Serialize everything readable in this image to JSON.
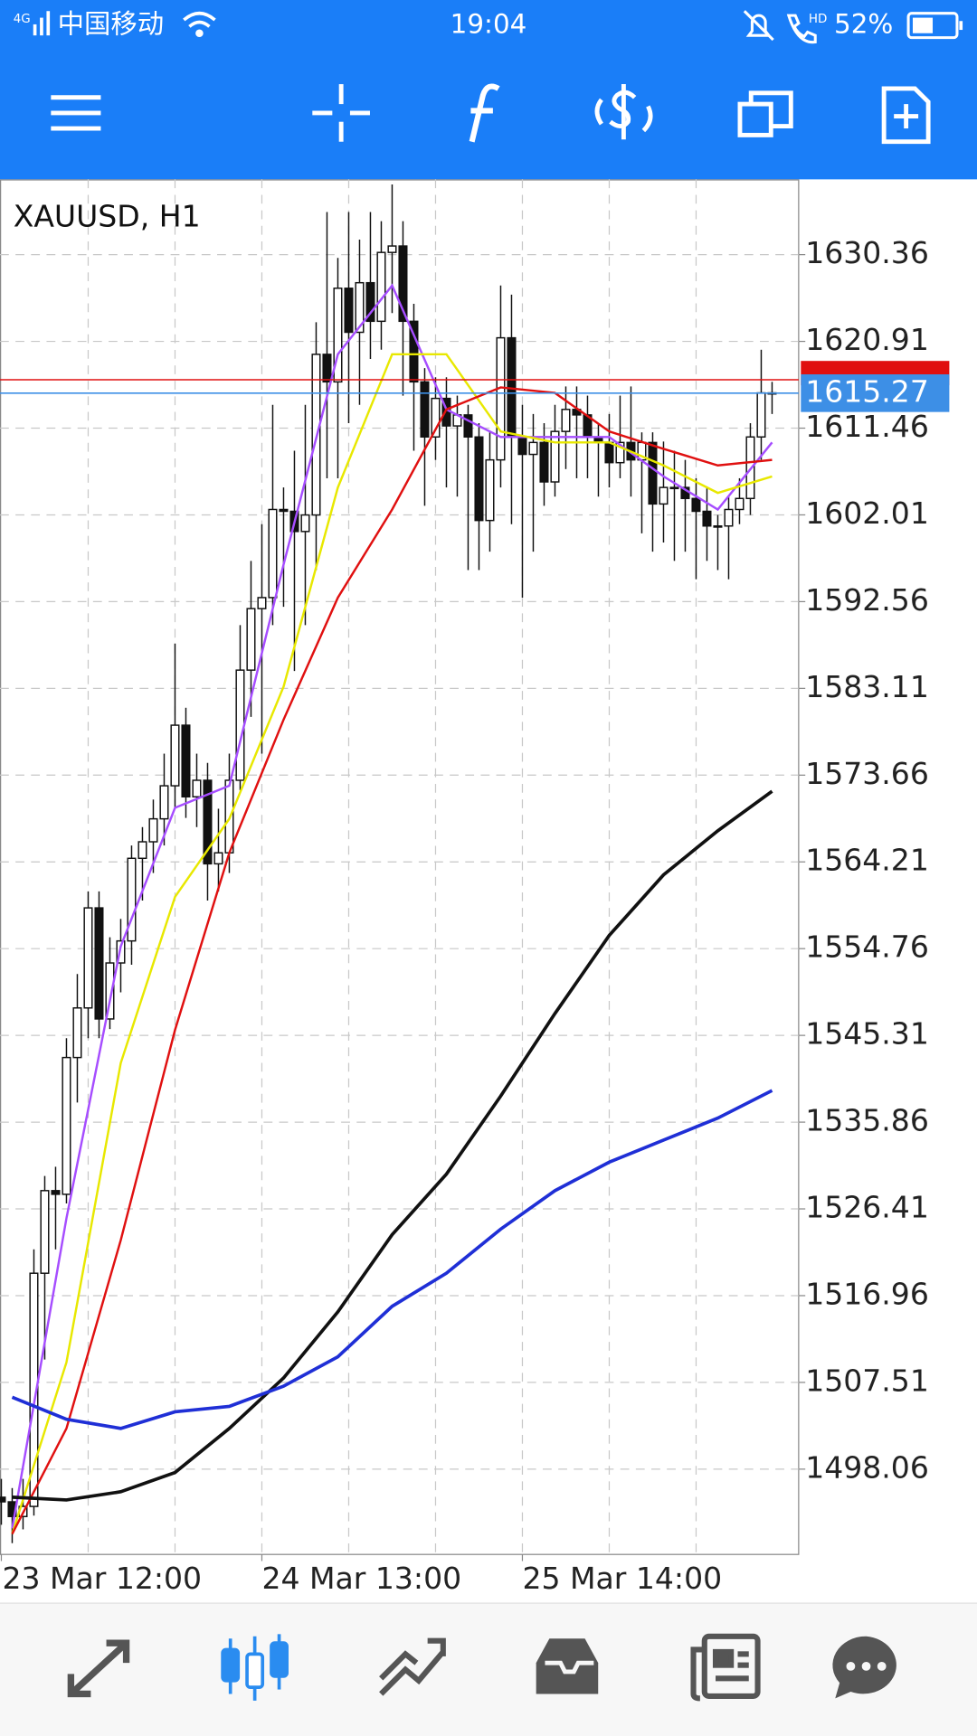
{
  "status_bar": {
    "network": "4G",
    "carrier": "中国移动",
    "time": "19:04",
    "hd": "HD",
    "battery": "52%"
  },
  "chart_data": {
    "type": "candlestick",
    "title": "XAUUSD, H1",
    "categories": [
      "23 Mar 12:00",
      null,
      null,
      null,
      null,
      null,
      null,
      null,
      null,
      null,
      null,
      null,
      null,
      null,
      null,
      null,
      null,
      null,
      null,
      null,
      null,
      null,
      null,
      null,
      "24 Mar 13:00",
      null,
      null,
      null,
      null,
      null,
      null,
      null,
      null,
      null,
      null,
      null,
      null,
      null,
      null,
      null,
      null,
      null,
      null,
      null,
      null,
      null,
      null,
      null,
      "25 Mar 14:00",
      null,
      null,
      null,
      null,
      null,
      null,
      null,
      null,
      null,
      null,
      null,
      null,
      null,
      null,
      null,
      null,
      null,
      null,
      null,
      null,
      null,
      null,
      null
    ],
    "open": [
      1495,
      1494.5,
      1492.9,
      1494,
      1519.4,
      1528.4,
      1528,
      1542.9,
      1548.3,
      1559.2,
      1547.1,
      1553.2,
      1555.6,
      1564.6,
      1566.4,
      1568.9,
      1572.5,
      1579.1,
      1571.3,
      1573.1,
      1564,
      1565.2,
      1573.1,
      1585.1,
      1591.8,
      1593,
      1602.6,
      1602.4,
      1600.2,
      1602,
      1619.5,
      1616.5,
      1626.7,
      1621.9,
      1627.3,
      1623.1,
      1630.6,
      1631.3,
      1623.1,
      1616.5,
      1610.5,
      1614.7,
      1611.7,
      1612.9,
      1610.5,
      1601.4,
      1608,
      1621.3,
      1610.5,
      1608.6,
      1609.9,
      1605.6,
      1611.1,
      1613.5,
      1612.9,
      1610.5,
      1609.9,
      1607.7,
      1609.9,
      1608,
      1609.9,
      1603.2,
      1605,
      1605,
      1603.8,
      1602.4,
      1600.8,
      1600.8,
      1602.6,
      1603.8,
      1610.5,
      1615.3
    ],
    "high": [
      1497,
      1496,
      1497,
      1522,
      1530,
      1531,
      1545,
      1552,
      1561,
      1561,
      1556,
      1558,
      1566,
      1568,
      1571,
      1576,
      1588,
      1581,
      1576,
      1575,
      1570,
      1576,
      1590,
      1597,
      1601,
      1614,
      1605,
      1609,
      1614,
      1623,
      1635,
      1630,
      1635,
      1632,
      1635,
      1634,
      1638,
      1634,
      1625,
      1618,
      1617,
      1617,
      1615,
      1614,
      1612,
      1611,
      1627,
      1626,
      1614,
      1613,
      1612,
      1614,
      1616,
      1616,
      1615,
      1612,
      1613,
      1615,
      1616,
      1611,
      1611,
      1610,
      1609,
      1608,
      1606,
      1605,
      1602,
      1604,
      1606,
      1612,
      1620,
      1616.5
    ],
    "low": [
      1492,
      1490,
      1491.5,
      1493,
      1510,
      1522,
      1527,
      1538,
      1545,
      1545,
      1546,
      1550,
      1553,
      1560,
      1563,
      1566,
      1570,
      1569,
      1568,
      1560,
      1561,
      1563,
      1572,
      1580,
      1576,
      1590,
      1592,
      1585,
      1590,
      1596,
      1606,
      1606,
      1612,
      1614,
      1619,
      1620,
      1624,
      1615,
      1609,
      1603,
      1608,
      1605,
      1604,
      1596,
      1596,
      1598,
      1605,
      1601,
      1593,
      1598,
      1603,
      1604,
      1607,
      1606,
      1606,
      1604,
      1605,
      1606,
      1604,
      1600,
      1598,
      1599,
      1597,
      1598,
      1595,
      1597,
      1596,
      1595,
      1601,
      1602,
      1608,
      1613
    ],
    "close": [
      1494.5,
      1492.9,
      1494,
      1519.4,
      1528.4,
      1528,
      1542.9,
      1548.3,
      1559.2,
      1547.1,
      1553.2,
      1555.6,
      1564.6,
      1566.4,
      1568.9,
      1572.5,
      1579.1,
      1571.3,
      1573.1,
      1564,
      1565.2,
      1573.1,
      1585.1,
      1591.8,
      1593,
      1602.6,
      1602.4,
      1600.2,
      1602,
      1619.5,
      1616.5,
      1626.7,
      1621.9,
      1627.3,
      1623.1,
      1630.6,
      1631.3,
      1623.1,
      1616.5,
      1610.5,
      1614.7,
      1611.7,
      1612.9,
      1610.5,
      1601.4,
      1608,
      1621.3,
      1610.5,
      1608.6,
      1609.9,
      1605.6,
      1611.1,
      1613.5,
      1612.9,
      1610.5,
      1609.9,
      1607.7,
      1609.9,
      1608,
      1609.9,
      1603.2,
      1605,
      1605,
      1603.8,
      1602.4,
      1600.8,
      1600.8,
      1602.6,
      1603.8,
      1610.5,
      1615.3,
      1615.27
    ],
    "series": [
      {
        "color": "#a64dff",
        "x": [
          1,
          6,
          11,
          16,
          21,
          26,
          31,
          36,
          41,
          46,
          51,
          56,
          61,
          66,
          71
        ],
        "values": [
          1491.6,
          1525.4,
          1555,
          1570.1,
          1572.5,
          1596.6,
          1619.5,
          1627,
          1613.5,
          1610.5,
          1610.5,
          1610.5,
          1606.2,
          1602.6,
          1609.9
        ]
      },
      {
        "color": "#e8e800",
        "x": [
          1,
          6,
          11,
          16,
          21,
          26,
          31,
          36,
          41,
          46,
          51,
          56,
          61,
          66,
          71
        ],
        "values": [
          1491,
          1509.7,
          1542.3,
          1560.4,
          1568.9,
          1583.3,
          1605,
          1619.5,
          1619.5,
          1611.1,
          1609.9,
          1609.9,
          1607.4,
          1604.4,
          1606.2
        ]
      },
      {
        "color": "#e01010",
        "x": [
          1,
          6,
          11,
          16,
          21,
          26,
          31,
          36,
          41,
          46,
          51,
          56,
          61,
          66,
          71
        ],
        "values": [
          1491,
          1502.5,
          1523,
          1545.9,
          1565.2,
          1579.7,
          1593,
          1602.6,
          1613.5,
          1615.9,
          1615.3,
          1611.1,
          1609.2,
          1607.4,
          1608
        ]
      },
      {
        "color": "#111111",
        "x": [
          1,
          6,
          11,
          16,
          21,
          26,
          31,
          36,
          41,
          46,
          51,
          56,
          61,
          66,
          71
        ],
        "values": [
          1495,
          1494.7,
          1495.6,
          1497.7,
          1502.5,
          1508,
          1515.2,
          1523.6,
          1530.2,
          1538.7,
          1547.7,
          1556.2,
          1562.8,
          1567.6,
          1571.9
        ]
      },
      {
        "color": "#1f2fd6",
        "x": [
          1,
          6,
          11,
          16,
          21,
          26,
          31,
          36,
          41,
          46,
          51,
          56,
          61,
          66,
          71
        ],
        "values": [
          1505.9,
          1503.5,
          1502.5,
          1504.3,
          1504.9,
          1507.1,
          1510.3,
          1515.8,
          1519.4,
          1524.2,
          1528.4,
          1531.5,
          1533.9,
          1536.3,
          1539.3
        ]
      }
    ],
    "price_lines": [
      {
        "value": 1616.73,
        "color": "#e01010"
      },
      {
        "value": 1615.27,
        "color": "#3d8fe6"
      }
    ],
    "ylim": [
      1488.77,
      1638.56
    ],
    "yticks": [
      1498.06,
      1507.51,
      1516.96,
      1526.41,
      1535.86,
      1545.31,
      1554.76,
      1564.21,
      1573.66,
      1583.11,
      1592.56,
      1602.01,
      1611.46,
      1620.91,
      1630.36
    ],
    "grid": true
  }
}
